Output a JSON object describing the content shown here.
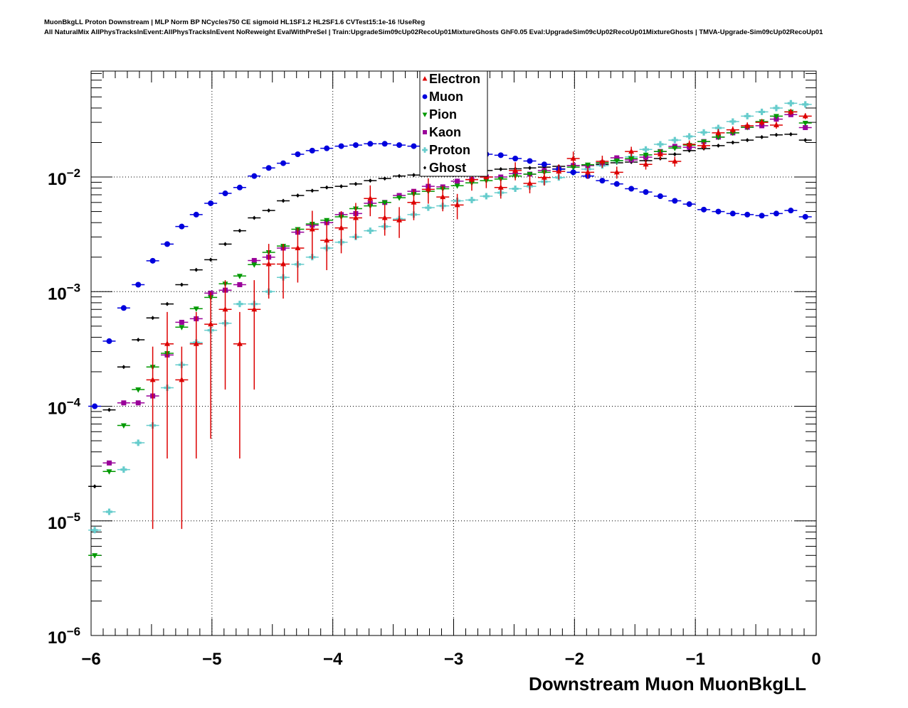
{
  "title": {
    "line1": "MuonBkgLL Proton Downstream | MLP Norm BP NCycles750 CE sigmoid HL1SF1.2 HL2SF1.6 CVTest15:1e-16 !UseReg",
    "line2": "All NaturalMix AllPhysTracksInEvent:AllPhysTracksInEvent NoReweight EvalWithPreSel | Train:UpgradeSim09cUp02RecoUp01MixtureGhosts GhF0.05 Eval:UpgradeSim09cUp02RecoUp01MixtureGhosts | TMVA-Upgrade-Sim09cUp02RecoUp01"
  },
  "chart_data": {
    "type": "scatter",
    "xlabel": "Downstream Muon MuonBkgLL",
    "ylabel": "",
    "xlim": [
      -6,
      0
    ],
    "ylim": [
      1e-06,
      0.084
    ],
    "yscale": "log",
    "grid": true,
    "legend_placement": "top-center",
    "x_ticks": [
      "−6",
      "−5",
      "−4",
      "−3",
      "−2",
      "−1",
      "0"
    ],
    "x_tick_values": [
      -6,
      -5,
      -4,
      -3,
      -2,
      -1,
      0
    ],
    "y_ticks": [
      {
        "base": "10",
        "exp": "−2",
        "value": 0.01
      },
      {
        "base": "10",
        "exp": "−3",
        "value": 0.001
      },
      {
        "base": "10",
        "exp": "−4",
        "value": 0.0001
      },
      {
        "base": "10",
        "exp": "−5",
        "value": 1e-05
      },
      {
        "base": "10",
        "exp": "−6",
        "value": 1e-06
      }
    ],
    "x": [
      -5.97,
      -5.85,
      -5.73,
      -5.61,
      -5.49,
      -5.37,
      -5.25,
      -5.13,
      -5.01,
      -4.89,
      -4.77,
      -4.65,
      -4.53,
      -4.41,
      -4.29,
      -4.17,
      -4.05,
      -3.93,
      -3.81,
      -3.69,
      -3.57,
      -3.45,
      -3.33,
      -3.21,
      -3.09,
      -2.97,
      -2.85,
      -2.73,
      -2.61,
      -2.49,
      -2.37,
      -2.25,
      -2.13,
      -2.01,
      -1.89,
      -1.77,
      -1.65,
      -1.53,
      -1.41,
      -1.29,
      -1.17,
      -1.05,
      -0.93,
      -0.81,
      -0.69,
      -0.57,
      -0.45,
      -0.33,
      -0.21,
      -0.09
    ],
    "series": [
      {
        "name": "Electron",
        "color": "#dd0000",
        "marker": "triangle-up",
        "values": [
          null,
          null,
          null,
          null,
          0.00017,
          0.00035,
          0.00017,
          0.00035,
          0.00052,
          0.0007,
          0.00035,
          0.0007,
          0.00174,
          0.00174,
          0.0024,
          0.0035,
          0.0028,
          0.0036,
          0.0044,
          0.0065,
          0.0044,
          0.0042,
          0.006,
          0.0078,
          0.0067,
          0.0057,
          0.0095,
          0.01,
          0.0081,
          0.0114,
          0.0088,
          0.0099,
          0.0112,
          0.0145,
          0.011,
          0.0137,
          0.011,
          0.0167,
          0.0129,
          0.0158,
          0.0137,
          0.0193,
          0.0188,
          0.0243,
          0.0258,
          0.028,
          0.03,
          0.0284,
          0.037,
          0.034
        ],
        "rel_err": [
          0,
          0,
          0,
          0,
          0.95,
          0.9,
          0.95,
          0.9,
          0.9,
          0.8,
          0.9,
          0.8,
          0.5,
          0.5,
          0.5,
          0.45,
          0.45,
          0.4,
          0.35,
          0.3,
          0.3,
          0.3,
          0.3,
          0.25,
          0.25,
          0.25,
          0.2,
          0.2,
          0.2,
          0.18,
          0.18,
          0.15,
          0.15,
          0.15,
          0.12,
          0.12,
          0.12,
          0.1,
          0.1,
          0.1,
          0.1,
          0.08,
          0.08,
          0.08,
          0.07,
          0.07,
          0.07,
          0.07,
          0.06,
          0.06
        ]
      },
      {
        "name": "Muon",
        "color": "#0000dd",
        "marker": "circle",
        "values": [
          0.0001,
          0.00037,
          0.00072,
          0.00115,
          0.00186,
          0.0026,
          0.0037,
          0.0047,
          0.0059,
          0.0072,
          0.0081,
          0.0102,
          0.012,
          0.0132,
          0.0158,
          0.017,
          0.0178,
          0.0186,
          0.019,
          0.0195,
          0.0195,
          0.019,
          0.0186,
          0.0182,
          0.0178,
          0.017,
          0.0166,
          0.0158,
          0.0155,
          0.0145,
          0.0138,
          0.0129,
          0.0117,
          0.011,
          0.0102,
          0.0093,
          0.0087,
          0.0079,
          0.0074,
          0.0068,
          0.0062,
          0.0058,
          0.0052,
          0.005,
          0.0048,
          0.0047,
          0.0046,
          0.0048,
          0.0051,
          0.0045
        ]
      },
      {
        "name": "Pion",
        "color": "#009900",
        "marker": "triangle-down",
        "values": [
          5e-06,
          2.7e-05,
          6.8e-05,
          0.00014,
          0.00022,
          0.00029,
          0.00049,
          0.00071,
          0.00089,
          0.00117,
          0.00137,
          0.00172,
          0.0022,
          0.0025,
          0.0035,
          0.0039,
          0.0042,
          0.0045,
          0.0053,
          0.0056,
          0.006,
          0.0066,
          0.0071,
          0.0075,
          0.0079,
          0.0084,
          0.0089,
          0.0093,
          0.0096,
          0.0102,
          0.0106,
          0.011,
          0.0117,
          0.0122,
          0.0128,
          0.0133,
          0.0139,
          0.0145,
          0.0156,
          0.0167,
          0.0179,
          0.019,
          0.0204,
          0.0223,
          0.0243,
          0.0272,
          0.0305,
          0.034,
          0.037,
          0.0296
        ]
      },
      {
        "name": "Kaon",
        "color": "#990099",
        "marker": "square",
        "values": [
          null,
          3.2e-05,
          0.000107,
          0.000107,
          0.000123,
          0.00028,
          0.00054,
          0.00058,
          0.00097,
          0.00103,
          0.00115,
          0.00187,
          0.002,
          0.0024,
          0.0033,
          0.0038,
          0.004,
          0.0047,
          0.0048,
          0.0059,
          0.006,
          0.0069,
          0.0075,
          0.0083,
          0.0082,
          0.0092,
          0.0095,
          0.01,
          0.01,
          0.0107,
          0.0106,
          0.0114,
          0.0118,
          0.0126,
          0.0126,
          0.0133,
          0.0147,
          0.0141,
          0.0149,
          0.0167,
          0.0185,
          0.0182,
          0.0204,
          0.0223,
          0.0243,
          0.0272,
          0.028,
          0.032,
          0.035,
          0.027
        ]
      },
      {
        "name": "Proton",
        "color": "#66cccc",
        "marker": "cross",
        "values": [
          8.3e-06,
          1.2e-05,
          2.8e-05,
          4.8e-05,
          6.8e-05,
          0.000145,
          0.00023,
          0.00036,
          0.00046,
          0.00053,
          0.00078,
          0.00078,
          0.001,
          0.00133,
          0.00173,
          0.002,
          0.0024,
          0.0027,
          0.003,
          0.0034,
          0.0037,
          0.0043,
          0.0047,
          0.0054,
          0.0056,
          0.0062,
          0.0063,
          0.0068,
          0.0073,
          0.0079,
          0.0083,
          0.0091,
          0.0099,
          0.011,
          0.0117,
          0.0126,
          0.0139,
          0.015,
          0.0174,
          0.0193,
          0.021,
          0.0226,
          0.0245,
          0.0268,
          0.0305,
          0.034,
          0.037,
          0.04,
          0.044,
          0.043
        ]
      },
      {
        "name": "Ghost",
        "color": "#000000",
        "marker": "diamond",
        "values": [
          2e-05,
          9.3e-05,
          0.00022,
          0.00038,
          0.00059,
          0.00078,
          0.00115,
          0.00155,
          0.0019,
          0.0026,
          0.0034,
          0.0044,
          0.0051,
          0.0062,
          0.0069,
          0.0076,
          0.0081,
          0.0083,
          0.0087,
          0.0093,
          0.0097,
          0.0102,
          0.0104,
          0.0107,
          0.011,
          0.011,
          0.0112,
          0.0114,
          0.0117,
          0.0118,
          0.012,
          0.0122,
          0.0124,
          0.0126,
          0.0126,
          0.0129,
          0.0133,
          0.0135,
          0.0139,
          0.0145,
          0.0158,
          0.017,
          0.0177,
          0.0188,
          0.02,
          0.021,
          0.0223,
          0.0233,
          0.0236,
          0.021
        ]
      }
    ]
  }
}
